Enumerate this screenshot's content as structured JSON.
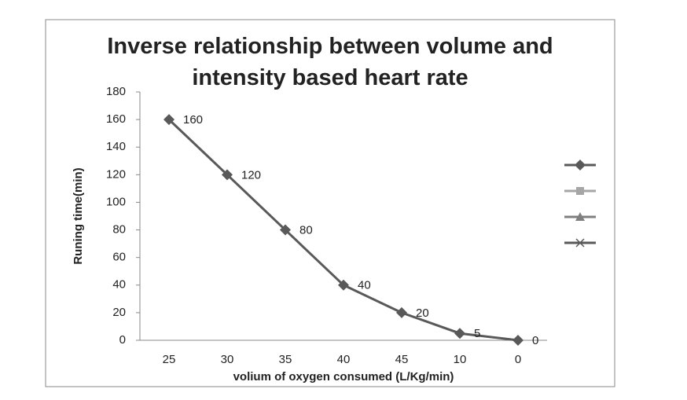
{
  "chart_data": {
    "type": "line",
    "title": "Inverse relationship between volume and intensity based heart rate",
    "x_label": "volium of oxygen consumed (L/Kg/min)",
    "y_label": "Runing time(min)",
    "categories": [
      "25",
      "30",
      "35",
      "40",
      "45",
      "10",
      "0"
    ],
    "series": [
      {
        "color": "#595959",
        "values": [
          160,
          120,
          80,
          40,
          20,
          5,
          0
        ]
      }
    ],
    "ylim": [
      0,
      180
    ],
    "yticks": [
      0,
      20,
      40,
      60,
      80,
      100,
      120,
      140,
      160,
      180
    ],
    "grid": false,
    "data_labels": true,
    "legend": "right",
    "legend_markers": [
      {
        "color": "#595959",
        "marker": "diamond"
      },
      {
        "color": "#a6a6a6",
        "marker": "square"
      },
      {
        "color": "#7f7f7f",
        "marker": "triangle"
      },
      {
        "color": "#595959",
        "marker": "x"
      }
    ]
  }
}
